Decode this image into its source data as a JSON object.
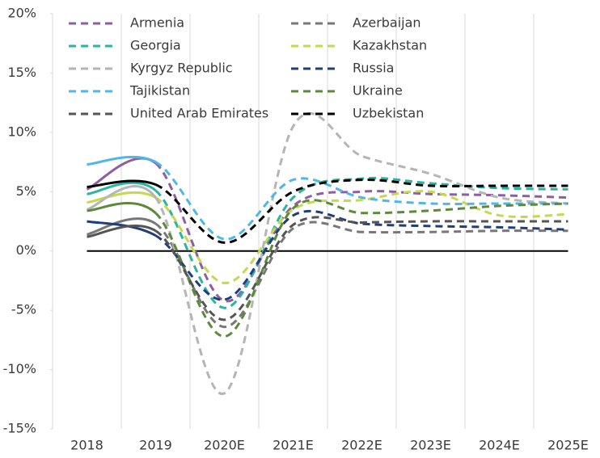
{
  "chart_data": {
    "type": "line",
    "categories": [
      "2018",
      "2019",
      "2020E",
      "2021E",
      "2022E",
      "2023E",
      "2024E",
      "2025E"
    ],
    "ylim": [
      -15,
      20
    ],
    "yticks": [
      {
        "value": -15,
        "label": "-15%"
      },
      {
        "value": -10,
        "label": "-10%"
      },
      {
        "value": -5,
        "label": "-5%"
      },
      {
        "value": 0,
        "label": "0%"
      },
      {
        "value": 5,
        "label": "5%"
      },
      {
        "value": 10,
        "label": "10%"
      },
      {
        "value": 15,
        "label": "15%"
      },
      {
        "value": 20,
        "label": "20%"
      }
    ],
    "grid": true,
    "series": [
      {
        "name": "Armenia",
        "color": "#8e5ea2",
        "values": [
          5.2,
          7.4,
          -4.2,
          3.8,
          5.0,
          4.8,
          4.7,
          4.5
        ]
      },
      {
        "name": "Azerbaijan",
        "color": "#777777",
        "values": [
          1.4,
          2.3,
          -6.4,
          1.9,
          1.6,
          1.6,
          1.7,
          1.7
        ]
      },
      {
        "name": "Georgia",
        "color": "#2ab5a0",
        "values": [
          4.8,
          5.1,
          -4.8,
          4.5,
          6.1,
          5.7,
          5.3,
          5.2
        ]
      },
      {
        "name": "Kazakhstan",
        "color": "#c5d94a",
        "values": [
          4.1,
          4.5,
          -2.7,
          3.5,
          4.3,
          5.0,
          3.0,
          3.1
        ]
      },
      {
        "name": "Kyrgyz Republic",
        "color": "#b5b5b5",
        "values": [
          3.5,
          4.5,
          -12.0,
          10.5,
          8.0,
          6.5,
          4.5,
          4.0
        ]
      },
      {
        "name": "Russia",
        "color": "#1f3f7a",
        "values": [
          2.5,
          1.3,
          -4.1,
          3.0,
          2.3,
          2.1,
          2.0,
          1.8
        ]
      },
      {
        "name": "Tajikistan",
        "color": "#4db8e8",
        "values": [
          7.3,
          7.5,
          1.0,
          6.0,
          4.5,
          4.0,
          4.0,
          4.0
        ]
      },
      {
        "name": "Ukraine",
        "color": "#5a8a3a",
        "values": [
          3.4,
          3.2,
          -7.2,
          3.6,
          3.2,
          3.4,
          3.8,
          4.0
        ]
      },
      {
        "name": "United Arab Emirates",
        "color": "#555555",
        "values": [
          1.2,
          1.7,
          -5.8,
          2.2,
          2.4,
          2.5,
          2.5,
          2.5
        ]
      },
      {
        "name": "Uzbekistan",
        "color": "#000000",
        "values": [
          5.4,
          5.6,
          0.7,
          5.0,
          6.0,
          5.5,
          5.5,
          5.5
        ]
      }
    ]
  }
}
